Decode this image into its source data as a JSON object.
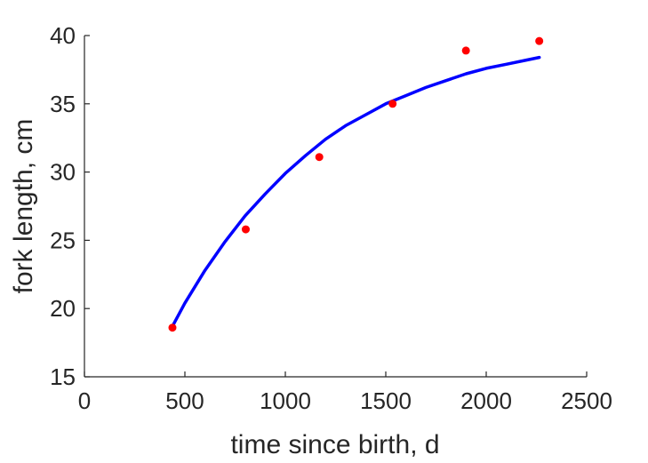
{
  "chart_data": {
    "type": "scatter",
    "title": "",
    "xlabel": "time since birth, d",
    "ylabel": "fork length, cm",
    "xlim": [
      0,
      2500
    ],
    "ylim": [
      15,
      40
    ],
    "xticks": [
      0,
      500,
      1000,
      1500,
      2000,
      2500
    ],
    "yticks": [
      15,
      20,
      25,
      30,
      35,
      40
    ],
    "grid": false,
    "series": [
      {
        "kind": "points",
        "color": "#ff0000",
        "x": [
          438,
          803,
          1169,
          1534,
          1899,
          2264
        ],
        "y": [
          18.6,
          25.8,
          31.1,
          35.0,
          38.9,
          39.6
        ]
      },
      {
        "kind": "line",
        "color": "#0000ff",
        "x": [
          438,
          500,
          600,
          700,
          800,
          900,
          1000,
          1100,
          1200,
          1300,
          1400,
          1500,
          1600,
          1700,
          1800,
          1900,
          2000,
          2100,
          2200,
          2264
        ],
        "y": [
          18.7,
          20.4,
          22.8,
          24.9,
          26.8,
          28.4,
          29.9,
          31.2,
          32.4,
          33.4,
          34.2,
          35.0,
          35.6,
          36.2,
          36.7,
          37.2,
          37.6,
          37.9,
          38.2,
          38.4
        ]
      }
    ]
  }
}
